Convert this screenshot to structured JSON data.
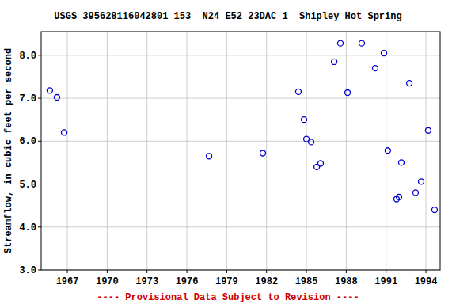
{
  "chart_data": {
    "type": "scatter",
    "title": "USGS 395628116042801 153  N24 E52 23DAC 1  Shipley Hot Spring",
    "y_label": "Streamflow, in cubic feet per second",
    "annotations": [
      "---- Provisional Data Subject to Revision ----"
    ],
    "x": [
      1965.68,
      1966.22,
      1966.76,
      1977.67,
      1981.72,
      1984.4,
      1984.82,
      1985.0,
      1985.36,
      1985.78,
      1986.07,
      1987.09,
      1987.56,
      1988.1,
      1989.17,
      1990.18,
      1990.84,
      1991.13,
      1991.79,
      1991.97,
      1992.15,
      1992.75,
      1993.22,
      1993.64,
      1994.17,
      1994.65
    ],
    "values": [
      7.18,
      7.02,
      6.2,
      5.65,
      5.72,
      7.15,
      6.5,
      6.05,
      5.98,
      5.4,
      5.48,
      7.85,
      8.28,
      7.13,
      8.28,
      7.7,
      8.05,
      5.78,
      4.65,
      4.7,
      5.5,
      7.35,
      4.8,
      5.06,
      6.25,
      4.4
    ],
    "color": "#0000cc",
    "marker": "circle",
    "xlim": [
      1965.03,
      1995.07
    ],
    "xticks": [
      1967,
      1970,
      1973,
      1976,
      1979,
      1982,
      1985,
      1988,
      1991,
      1994
    ],
    "ylim": [
      3.0,
      8.55
    ],
    "yticks": [
      {
        "value": 3,
        "label": "3.0"
      },
      {
        "value": 4,
        "label": "4.0"
      },
      {
        "value": 5,
        "label": "5.0"
      },
      {
        "value": 6,
        "label": "6.0"
      },
      {
        "value": 7,
        "label": "7.0"
      },
      {
        "value": 8,
        "label": "8.0"
      }
    ],
    "grid": true
  }
}
